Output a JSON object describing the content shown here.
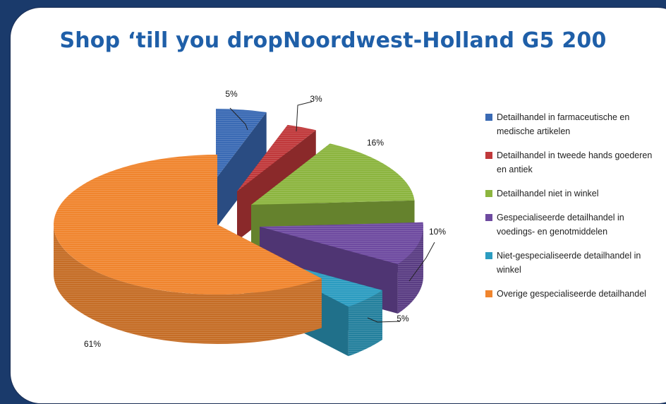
{
  "chart_data": {
    "type": "pie",
    "title": "Shop ‘till you dropNoordwest-Holland G5 200",
    "categories": [
      "Detailhandel in farmaceutische en medische artikelen",
      "Detailhandel in tweede hands goederen en antiek",
      "Detailhandel niet in winkel",
      "Gespecialiseerde detailhandel in voedings- en genotmiddelen",
      "Niet-gespecialiseerde detailhandel in winkel",
      "Overige gespecialiseerde detailhandel"
    ],
    "values": [
      5,
      3,
      16,
      10,
      5,
      61
    ],
    "data_labels": [
      "5%",
      "3%",
      "16%",
      "10%",
      "5%",
      "61%"
    ],
    "colors": [
      "#3a6ab4",
      "#c0393b",
      "#8cb53f",
      "#6e4aa0",
      "#2c9cc0",
      "#f0852e"
    ],
    "legend_position": "right",
    "exploded": true,
    "three_d": true
  },
  "legend": [
    "Detailhandel in farmaceutische en medische artikelen",
    "Detailhandel in tweede hands goederen en antiek",
    "Detailhandel niet in winkel",
    "Gespecialiseerde detailhandel in voedings- en genotmiddelen",
    "Niet-gespecialiseerde detailhandel in winkel",
    "Overige gespecialiseerde detailhandel"
  ]
}
